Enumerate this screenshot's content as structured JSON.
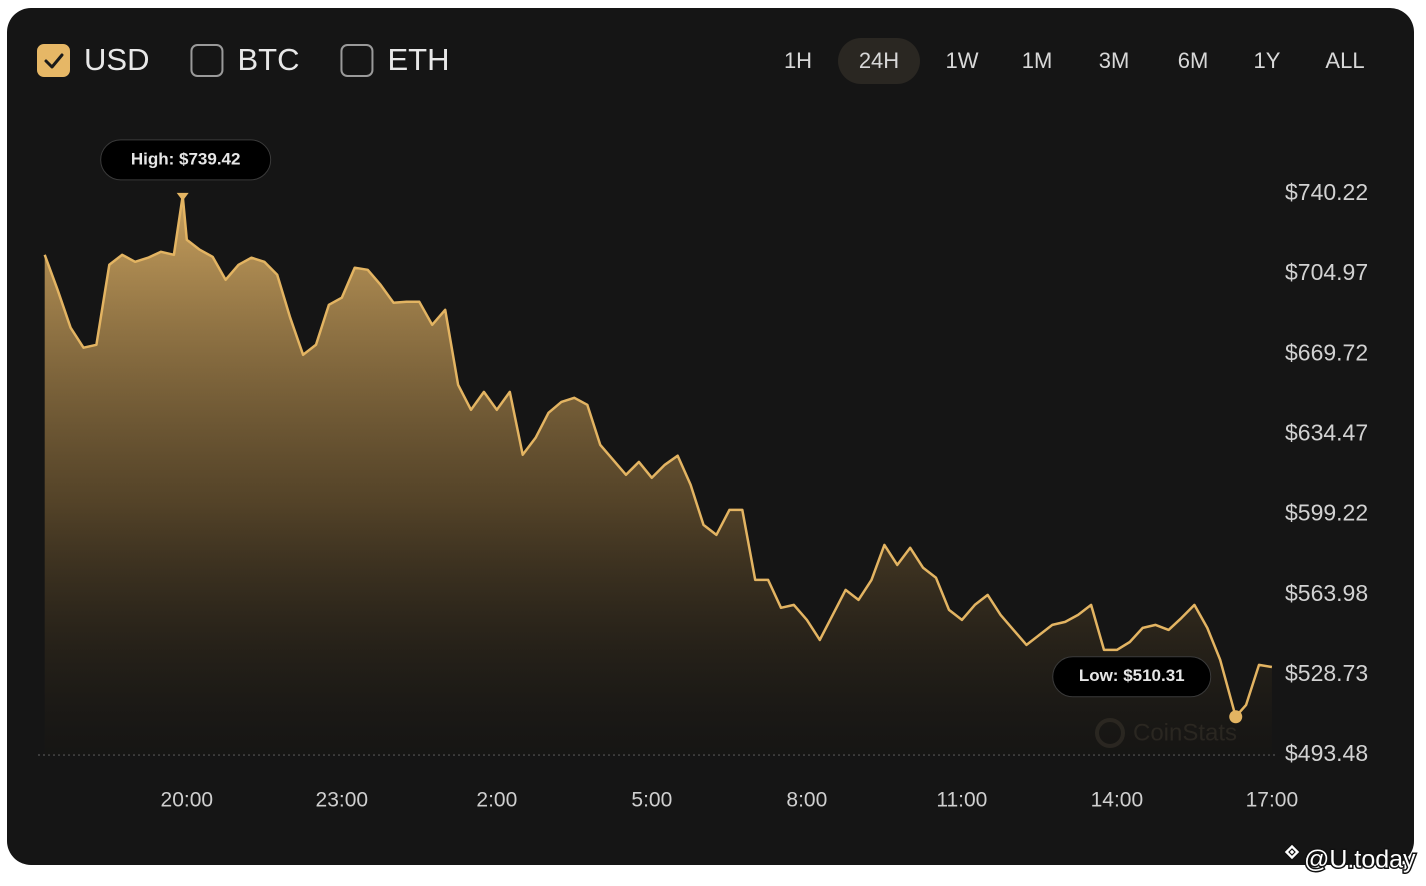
{
  "controls": {
    "currencies": [
      {
        "label": "USD",
        "checked": true
      },
      {
        "label": "BTC",
        "checked": false
      },
      {
        "label": "ETH",
        "checked": false
      }
    ],
    "ranges": [
      "1H",
      "24H",
      "1W",
      "1M",
      "3M",
      "6M",
      "1Y",
      "ALL"
    ],
    "selected_range": "24H"
  },
  "watermarks": [
    "CoinStats",
    "@U.today"
  ],
  "chart_data": {
    "type": "area",
    "color": "#e3b462",
    "high_label": "High: $739.42",
    "low_label": "Low: $510.31",
    "x": [
      17.25,
      17.5,
      17.75,
      18.0,
      18.25,
      18.5,
      18.75,
      19.0,
      19.25,
      19.5,
      19.75,
      19.92,
      20.0,
      20.25,
      20.5,
      20.75,
      21.0,
      21.25,
      21.5,
      21.75,
      22.0,
      22.25,
      22.5,
      22.75,
      23.0,
      23.25,
      23.5,
      23.75,
      24.0,
      24.25,
      24.5,
      24.75,
      25.0,
      25.25,
      25.5,
      25.75,
      26.0,
      26.25,
      26.5,
      26.75,
      27.0,
      27.25,
      27.5,
      27.75,
      28.0,
      28.25,
      28.5,
      28.75,
      29.0,
      29.25,
      29.5,
      29.75,
      30.0,
      30.25,
      30.5,
      30.75,
      31.0,
      31.25,
      31.5,
      31.75,
      32.0,
      32.25,
      32.5,
      32.75,
      33.0,
      33.25,
      33.5,
      33.75,
      34.0,
      34.25,
      34.5,
      34.75,
      35.0,
      35.25,
      35.5,
      35.75,
      36.0,
      36.25,
      36.5,
      36.75,
      37.0,
      37.25,
      37.5,
      37.75,
      38.0,
      38.25,
      38.5,
      38.75,
      39.0,
      39.25,
      39.5,
      39.75,
      40.0,
      40.3,
      40.5,
      40.75,
      41.0
    ],
    "values": [
      713.5,
      698.1,
      681.4,
      672.6,
      673.9,
      709.1,
      713.5,
      710.4,
      712.2,
      714.8,
      713.5,
      739.42,
      720.1,
      715.7,
      712.6,
      702.5,
      709.1,
      712.2,
      710.4,
      704.7,
      685.8,
      669.5,
      673.9,
      691.5,
      694.6,
      707.8,
      706.9,
      700.3,
      692.4,
      692.8,
      692.8,
      682.7,
      689.3,
      656.3,
      645.3,
      653.2,
      645.3,
      653.2,
      625.5,
      633.0,
      644.0,
      648.8,
      650.6,
      647.5,
      629.9,
      623.3,
      616.7,
      622.4,
      615.4,
      621.1,
      625.1,
      612.3,
      594.7,
      590.3,
      601.3,
      601.3,
      570.5,
      570.5,
      558.2,
      559.5,
      552.9,
      544.1,
      555.1,
      566.1,
      561.7,
      570.5,
      585.9,
      577.1,
      584.6,
      575.8,
      571.4,
      557.3,
      552.9,
      559.5,
      563.9,
      555.1,
      548.5,
      541.9,
      546.3,
      550.7,
      552.0,
      555.1,
      559.5,
      539.7,
      539.7,
      543.2,
      549.4,
      550.7,
      548.5,
      553.8,
      559.5,
      549.4,
      535.3,
      510.31,
      515.5,
      533.1,
      532.2
    ],
    "xlim": [
      17.12,
      41.06
    ],
    "xticks": [
      {
        "value": 20,
        "label": "20:00"
      },
      {
        "value": 23,
        "label": "23:00"
      },
      {
        "value": 26,
        "label": "2:00"
      },
      {
        "value": 29,
        "label": "5:00"
      },
      {
        "value": 32,
        "label": "8:00"
      },
      {
        "value": 35,
        "label": "11:00"
      },
      {
        "value": 38,
        "label": "14:00"
      },
      {
        "value": 41,
        "label": "17:00"
      }
    ],
    "ylim": [
      493.48,
      740.22
    ],
    "yticks": [
      {
        "value": 493.48,
        "label": "$493.48"
      },
      {
        "value": 528.73,
        "label": "$528.73"
      },
      {
        "value": 563.98,
        "label": "$563.98"
      },
      {
        "value": 599.22,
        "label": "$599.22"
      },
      {
        "value": 634.47,
        "label": "$634.47"
      },
      {
        "value": 669.72,
        "label": "$669.72"
      },
      {
        "value": 704.97,
        "label": "$704.97"
      },
      {
        "value": 740.22,
        "label": "$740.22"
      }
    ],
    "grid": false
  }
}
